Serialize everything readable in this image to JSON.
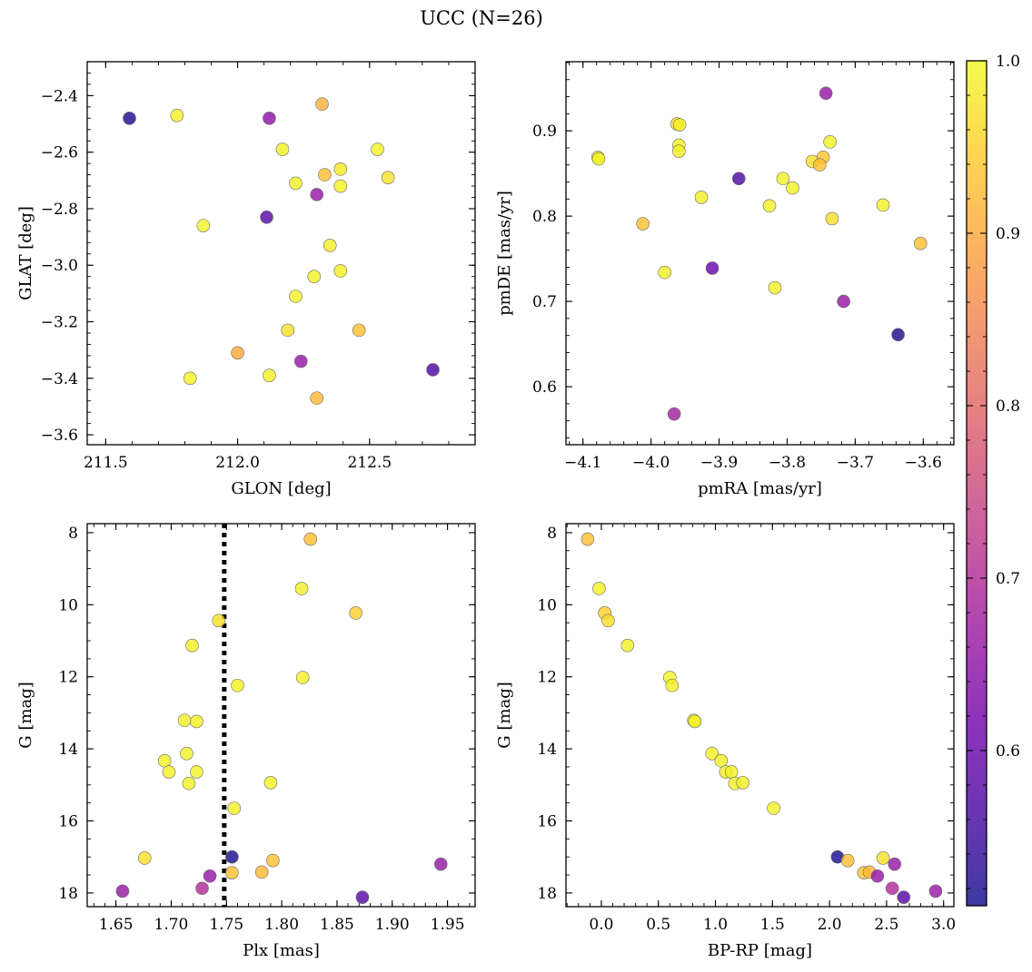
{
  "figure": {
    "title": "UCC (N=26)"
  },
  "colorbar": {
    "range": [
      0.51,
      1.0
    ],
    "ticks": [
      0.6,
      0.7,
      0.8,
      0.9,
      1.0
    ],
    "tick_labels": [
      "0.6",
      "0.7",
      "0.8",
      "0.9",
      "1.0"
    ],
    "colormap": [
      "#0d0887",
      "#46039f",
      "#7201a8",
      "#9c179e",
      "#bd3786",
      "#d8576b",
      "#ed7953",
      "#fb9f3a",
      "#fdca26",
      "#f0f921"
    ],
    "alpha": 0.8
  },
  "chart_data": [
    {
      "type": "scatter",
      "name": "top-left",
      "xlabel": "GLON [deg]",
      "ylabel": "GLAT [deg]",
      "xlim": [
        211.43,
        212.9
      ],
      "ylim": [
        -3.635,
        -2.28
      ],
      "y_inverted": false,
      "xticks": [
        211.5,
        212.0,
        212.5
      ],
      "xtick_labels": [
        "211.5",
        "212.0",
        "212.5"
      ],
      "yticks": [
        -2.4,
        -2.6,
        -2.8,
        -3.0,
        -3.2,
        -3.4,
        -3.6
      ],
      "ytick_labels": [
        "−2.4",
        "−2.6",
        "−2.8",
        "−3.0",
        "−3.2",
        "−3.4",
        "−3.6"
      ],
      "points": [
        {
          "x": 211.59,
          "y": -2.48,
          "c": 0.52
        },
        {
          "x": 211.77,
          "y": -2.47,
          "c": 0.99
        },
        {
          "x": 212.12,
          "y": -2.48,
          "c": 0.65
        },
        {
          "x": 212.32,
          "y": -2.43,
          "c": 0.91
        },
        {
          "x": 212.17,
          "y": -2.59,
          "c": 0.99
        },
        {
          "x": 212.53,
          "y": -2.59,
          "c": 0.99
        },
        {
          "x": 212.33,
          "y": -2.68,
          "c": 0.93
        },
        {
          "x": 212.39,
          "y": -2.66,
          "c": 0.98
        },
        {
          "x": 212.57,
          "y": -2.69,
          "c": 0.97
        },
        {
          "x": 212.22,
          "y": -2.71,
          "c": 0.99
        },
        {
          "x": 212.39,
          "y": -2.72,
          "c": 0.99
        },
        {
          "x": 212.3,
          "y": -2.75,
          "c": 0.66
        },
        {
          "x": 211.87,
          "y": -2.86,
          "c": 0.99
        },
        {
          "x": 212.11,
          "y": -2.83,
          "c": 0.58
        },
        {
          "x": 212.35,
          "y": -2.93,
          "c": 0.99
        },
        {
          "x": 212.39,
          "y": -3.02,
          "c": 0.99
        },
        {
          "x": 212.29,
          "y": -3.04,
          "c": 0.99
        },
        {
          "x": 212.22,
          "y": -3.11,
          "c": 0.99
        },
        {
          "x": 212.19,
          "y": -3.23,
          "c": 0.97
        },
        {
          "x": 212.46,
          "y": -3.23,
          "c": 0.93
        },
        {
          "x": 212.0,
          "y": -3.31,
          "c": 0.9
        },
        {
          "x": 212.24,
          "y": -3.34,
          "c": 0.66
        },
        {
          "x": 212.74,
          "y": -3.37,
          "c": 0.57
        },
        {
          "x": 211.82,
          "y": -3.4,
          "c": 0.99
        },
        {
          "x": 212.12,
          "y": -3.39,
          "c": 0.99
        },
        {
          "x": 212.3,
          "y": -3.47,
          "c": 0.92
        }
      ]
    },
    {
      "type": "scatter",
      "name": "top-right",
      "xlabel": "pmRA [mas/yr]",
      "ylabel": "pmDE [mas/yr]",
      "xlim": [
        -4.125,
        -3.555
      ],
      "ylim": [
        0.532,
        0.981
      ],
      "y_inverted": false,
      "xticks": [
        -4.1,
        -4.0,
        -3.9,
        -3.8,
        -3.7,
        -3.6
      ],
      "xtick_labels": [
        "−4.1",
        "−4.0",
        "−3.9",
        "−3.8",
        "−3.7",
        "−3.6"
      ],
      "yticks": [
        0.6,
        0.7,
        0.8,
        0.9
      ],
      "ytick_labels": [
        "0.6",
        "0.7",
        "0.8",
        "0.9"
      ],
      "points": [
        {
          "x": -3.743,
          "y": 0.944,
          "c": 0.66
        },
        {
          "x": -3.962,
          "y": 0.908,
          "c": 0.97
        },
        {
          "x": -3.958,
          "y": 0.907,
          "c": 0.99
        },
        {
          "x": -4.078,
          "y": 0.869,
          "c": 0.99
        },
        {
          "x": -4.077,
          "y": 0.867,
          "c": 0.99
        },
        {
          "x": -3.959,
          "y": 0.883,
          "c": 0.99
        },
        {
          "x": -3.959,
          "y": 0.876,
          "c": 0.99
        },
        {
          "x": -3.737,
          "y": 0.887,
          "c": 0.99
        },
        {
          "x": -3.747,
          "y": 0.869,
          "c": 0.94
        },
        {
          "x": -3.763,
          "y": 0.864,
          "c": 0.97
        },
        {
          "x": -3.752,
          "y": 0.86,
          "c": 0.93
        },
        {
          "x": -3.871,
          "y": 0.844,
          "c": 0.57
        },
        {
          "x": -3.806,
          "y": 0.844,
          "c": 0.99
        },
        {
          "x": -3.792,
          "y": 0.833,
          "c": 0.99
        },
        {
          "x": -3.926,
          "y": 0.822,
          "c": 0.99
        },
        {
          "x": -3.826,
          "y": 0.812,
          "c": 0.99
        },
        {
          "x": -3.659,
          "y": 0.813,
          "c": 0.99
        },
        {
          "x": -4.012,
          "y": 0.791,
          "c": 0.93
        },
        {
          "x": -3.734,
          "y": 0.797,
          "c": 0.97
        },
        {
          "x": -3.604,
          "y": 0.768,
          "c": 0.93
        },
        {
          "x": -3.91,
          "y": 0.739,
          "c": 0.6
        },
        {
          "x": -3.98,
          "y": 0.734,
          "c": 0.99
        },
        {
          "x": -3.818,
          "y": 0.716,
          "c": 0.99
        },
        {
          "x": -3.717,
          "y": 0.7,
          "c": 0.66
        },
        {
          "x": -3.637,
          "y": 0.661,
          "c": 0.52
        },
        {
          "x": -3.966,
          "y": 0.568,
          "c": 0.68
        }
      ]
    },
    {
      "type": "scatter",
      "name": "bottom-left",
      "xlabel": "Plx [mas]",
      "ylabel": "G [mag]",
      "xlim": [
        1.624,
        1.975
      ],
      "ylim": [
        18.38,
        7.75
      ],
      "y_inverted": true,
      "xticks": [
        1.65,
        1.7,
        1.75,
        1.8,
        1.85,
        1.9,
        1.95
      ],
      "xtick_labels": [
        "1.65",
        "1.70",
        "1.75",
        "1.80",
        "1.85",
        "1.90",
        "1.95"
      ],
      "yticks": [
        8,
        10,
        12,
        14,
        16,
        18
      ],
      "ytick_labels": [
        "8",
        "10",
        "12",
        "14",
        "16",
        "18"
      ],
      "vline": 1.748,
      "points": [
        {
          "x": 1.826,
          "y": 8.18,
          "c": 0.93
        },
        {
          "x": 1.818,
          "y": 9.55,
          "c": 0.99
        },
        {
          "x": 1.867,
          "y": 10.23,
          "c": 0.95
        },
        {
          "x": 1.743,
          "y": 10.44,
          "c": 0.97
        },
        {
          "x": 1.719,
          "y": 11.13,
          "c": 0.99
        },
        {
          "x": 1.819,
          "y": 12.02,
          "c": 0.99
        },
        {
          "x": 1.76,
          "y": 12.24,
          "c": 0.99
        },
        {
          "x": 1.712,
          "y": 13.21,
          "c": 0.99
        },
        {
          "x": 1.723,
          "y": 13.24,
          "c": 0.99
        },
        {
          "x": 1.714,
          "y": 14.13,
          "c": 0.99
        },
        {
          "x": 1.694,
          "y": 14.33,
          "c": 0.99
        },
        {
          "x": 1.698,
          "y": 14.64,
          "c": 0.99
        },
        {
          "x": 1.723,
          "y": 14.64,
          "c": 0.99
        },
        {
          "x": 1.716,
          "y": 14.96,
          "c": 0.99
        },
        {
          "x": 1.79,
          "y": 14.94,
          "c": 0.99
        },
        {
          "x": 1.757,
          "y": 15.65,
          "c": 0.99
        },
        {
          "x": 1.676,
          "y": 17.03,
          "c": 0.97
        },
        {
          "x": 1.755,
          "y": 17.0,
          "c": 0.52
        },
        {
          "x": 1.792,
          "y": 17.1,
          "c": 0.93
        },
        {
          "x": 1.755,
          "y": 17.44,
          "c": 0.93
        },
        {
          "x": 1.782,
          "y": 17.42,
          "c": 0.92
        },
        {
          "x": 1.735,
          "y": 17.53,
          "c": 0.66
        },
        {
          "x": 1.728,
          "y": 17.87,
          "c": 0.7
        },
        {
          "x": 1.656,
          "y": 17.95,
          "c": 0.66
        },
        {
          "x": 1.944,
          "y": 17.2,
          "c": 0.66
        },
        {
          "x": 1.873,
          "y": 18.12,
          "c": 0.58
        }
      ]
    },
    {
      "type": "scatter",
      "name": "bottom-right",
      "xlabel": "BP-RP [mag]",
      "ylabel": "G [mag]",
      "xlim": [
        -0.31,
        3.09
      ],
      "ylim": [
        18.38,
        7.75
      ],
      "y_inverted": true,
      "xticks": [
        0.0,
        0.5,
        1.0,
        1.5,
        2.0,
        2.5,
        3.0
      ],
      "xtick_labels": [
        "0.0",
        "0.5",
        "1.0",
        "1.5",
        "2.0",
        "2.5",
        "3.0"
      ],
      "yticks": [
        8,
        10,
        12,
        14,
        16,
        18
      ],
      "ytick_labels": [
        "8",
        "10",
        "12",
        "14",
        "16",
        "18"
      ],
      "points": [
        {
          "x": -0.12,
          "y": 8.18,
          "c": 0.93
        },
        {
          "x": -0.02,
          "y": 9.55,
          "c": 0.99
        },
        {
          "x": 0.03,
          "y": 10.23,
          "c": 0.95
        },
        {
          "x": 0.06,
          "y": 10.44,
          "c": 0.97
        },
        {
          "x": 0.23,
          "y": 11.13,
          "c": 0.99
        },
        {
          "x": 0.6,
          "y": 12.02,
          "c": 0.99
        },
        {
          "x": 0.62,
          "y": 12.24,
          "c": 0.99
        },
        {
          "x": 0.81,
          "y": 13.21,
          "c": 0.99
        },
        {
          "x": 0.82,
          "y": 13.24,
          "c": 0.99
        },
        {
          "x": 0.97,
          "y": 14.13,
          "c": 0.99
        },
        {
          "x": 1.05,
          "y": 14.33,
          "c": 0.99
        },
        {
          "x": 1.09,
          "y": 14.64,
          "c": 0.99
        },
        {
          "x": 1.14,
          "y": 14.64,
          "c": 0.99
        },
        {
          "x": 1.17,
          "y": 14.96,
          "c": 0.99
        },
        {
          "x": 1.24,
          "y": 14.94,
          "c": 0.99
        },
        {
          "x": 1.51,
          "y": 15.65,
          "c": 0.99
        },
        {
          "x": 2.07,
          "y": 17.0,
          "c": 0.52
        },
        {
          "x": 2.16,
          "y": 17.1,
          "c": 0.93
        },
        {
          "x": 2.47,
          "y": 17.03,
          "c": 0.97
        },
        {
          "x": 2.3,
          "y": 17.44,
          "c": 0.93
        },
        {
          "x": 2.35,
          "y": 17.42,
          "c": 0.92
        },
        {
          "x": 2.57,
          "y": 17.2,
          "c": 0.66
        },
        {
          "x": 2.42,
          "y": 17.53,
          "c": 0.66
        },
        {
          "x": 2.55,
          "y": 17.87,
          "c": 0.7
        },
        {
          "x": 2.65,
          "y": 18.12,
          "c": 0.58
        },
        {
          "x": 2.93,
          "y": 17.95,
          "c": 0.66
        }
      ]
    }
  ]
}
